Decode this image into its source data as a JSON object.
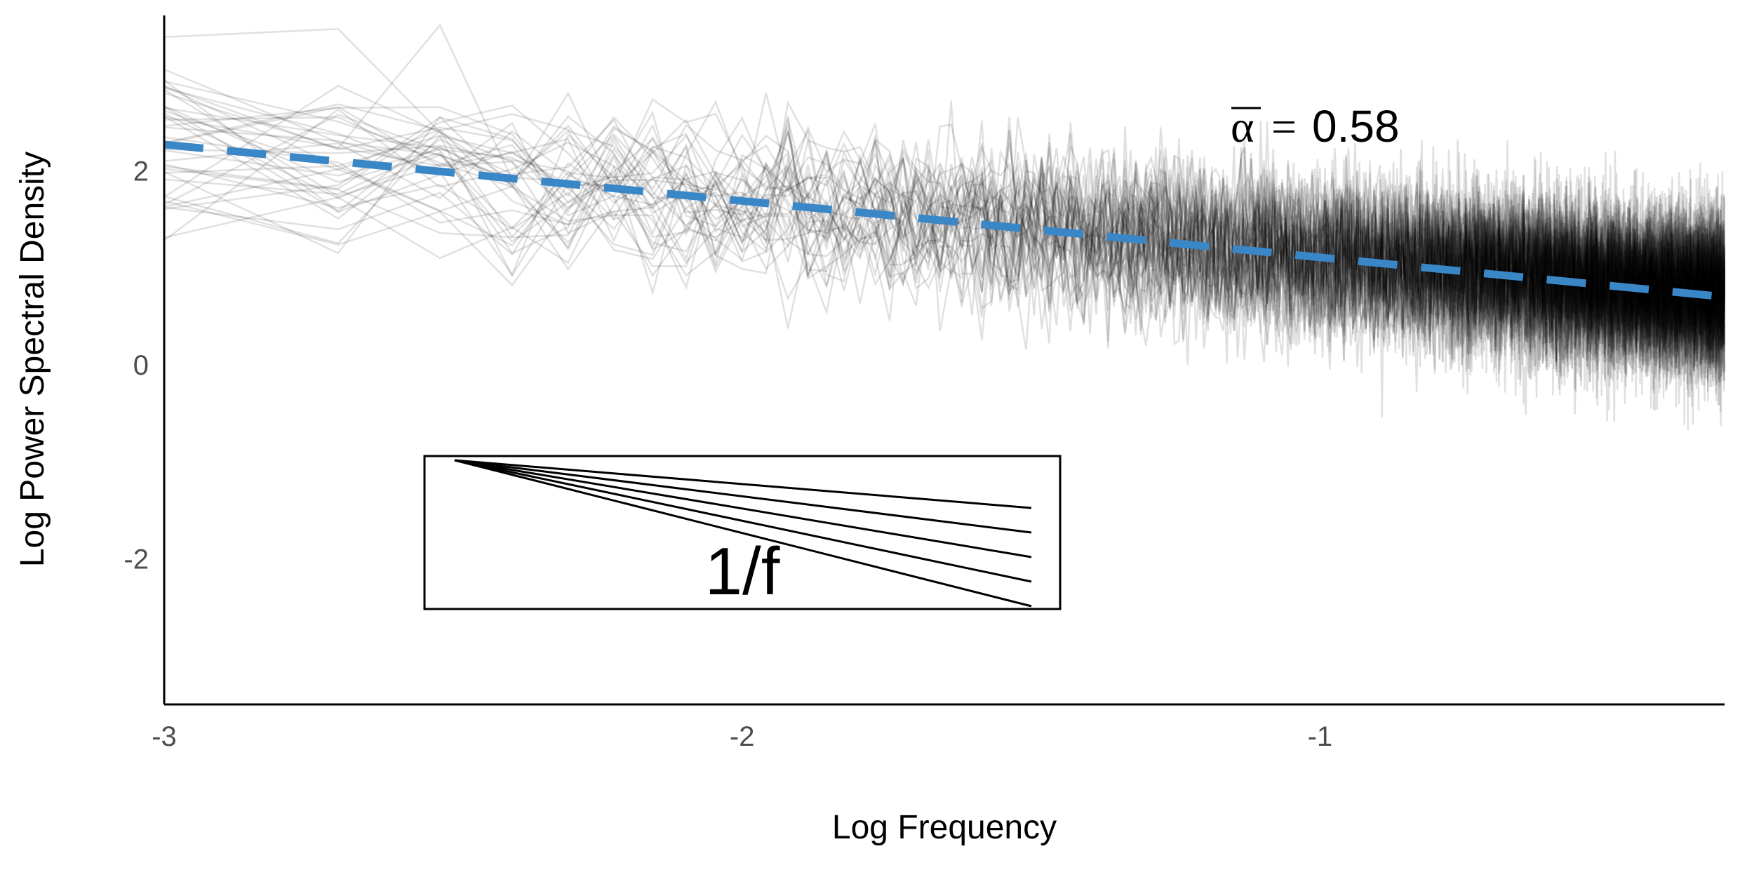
{
  "chart_data": {
    "type": "line",
    "xlabel": "Log Frequency",
    "ylabel": "Log Power Spectral Density",
    "xlim": [
      -3,
      -0.3
    ],
    "ylim": [
      -3.5,
      3.6
    ],
    "x_ticks": [
      -3,
      -2,
      -1
    ],
    "y_ticks": [
      -2,
      0,
      2
    ],
    "grid": false,
    "background_series": {
      "description_count": 40,
      "color": "#000000",
      "opacity": 0.12,
      "trend_slope": -0.58,
      "trend_intercept": 0.53
    },
    "mean_fit": {
      "color": "#3a87c8",
      "style": "dashed",
      "x": [
        -3,
        -0.3
      ],
      "y": [
        2.27,
        0.7
      ]
    },
    "annotation": {
      "symbol": "α",
      "equals": "=",
      "value": "0.58"
    },
    "inset": {
      "label": "1/f",
      "line_count": 5
    }
  }
}
